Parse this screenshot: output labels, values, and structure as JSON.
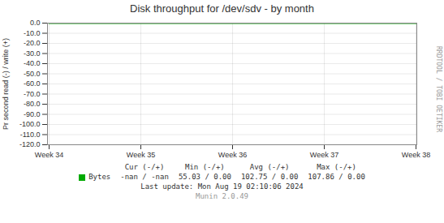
{
  "chart_data": {
    "type": "line",
    "title": "Disk throughput for /dev/sdv - by month",
    "y_label": "Pr second read (-) / write (+)",
    "categories": [
      "Week 34",
      "Week 35",
      "Week 36",
      "Week 37",
      "Week 38"
    ],
    "series": [
      {
        "name": "Bytes",
        "color": "#00aa00",
        "values": [
          0,
          0,
          0,
          0,
          0
        ]
      }
    ],
    "ylim": [
      -120,
      0
    ],
    "yticks": [
      {
        "value": 0,
        "label": "0.0"
      },
      {
        "value": -10,
        "label": "-10.0"
      },
      {
        "value": -20,
        "label": "-20.0"
      },
      {
        "value": -30,
        "label": "-30.0"
      },
      {
        "value": -40,
        "label": "-40.0"
      },
      {
        "value": -50,
        "label": "-50.0"
      },
      {
        "value": -60,
        "label": "-60.0"
      },
      {
        "value": -70,
        "label": "-70.0"
      },
      {
        "value": -80,
        "label": "-80.0"
      },
      {
        "value": -90,
        "label": "-90.0"
      },
      {
        "value": -100,
        "label": "-100.0"
      },
      {
        "value": -110,
        "label": "-110.0"
      },
      {
        "value": -120,
        "label": "-120.0"
      }
    ],
    "grid": true,
    "legend": "bottom",
    "annotations": [
      [
        "Cur (-/+)",
        "Min (-/+)",
        "Avg (-/+)",
        "Max (-/+)"
      ],
      [
        "-nan /",
        "-nan",
        "55.03 /",
        "0.00",
        "102.75 /",
        "0.00",
        "107.86 /",
        "0.00"
      ],
      [
        "Last update: Mon Aug 19 02:10:06 2024"
      ],
      [
        "Munin 2.0.49"
      ],
      [
        "RRDTOOL / TOBI OETIKER"
      ]
    ]
  }
}
